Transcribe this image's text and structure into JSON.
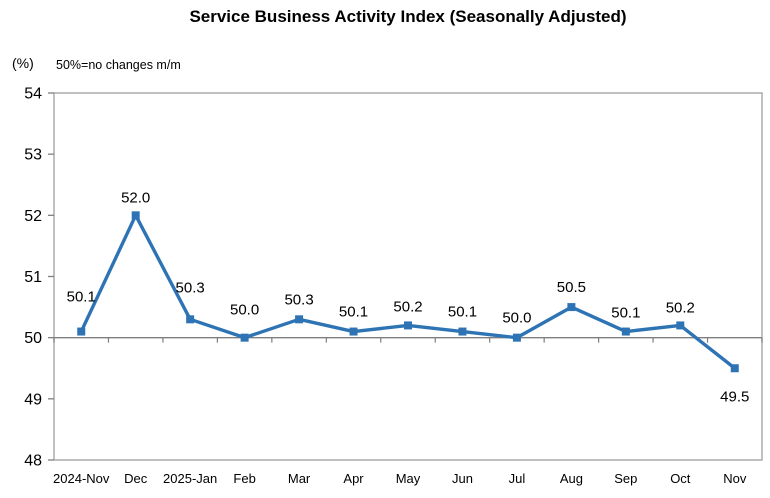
{
  "chart_data": {
    "type": "line",
    "title": "Service Business Activity Index (Seasonally Adjusted)",
    "unit_label": "(%)",
    "note": "50%=no changes m/m",
    "categories": [
      "2024-Nov",
      "Dec",
      "2025-Jan",
      "Feb",
      "Mar",
      "Apr",
      "May",
      "Jun",
      "Jul",
      "Aug",
      "Sep",
      "Oct",
      "Nov"
    ],
    "values": [
      50.1,
      52.0,
      50.3,
      50.0,
      50.3,
      50.1,
      50.2,
      50.1,
      50.0,
      50.5,
      50.1,
      50.2,
      49.5
    ],
    "xlabel": "",
    "ylabel": "(%)",
    "ylim": [
      48,
      54
    ],
    "y_ticks": [
      48,
      49,
      50,
      51,
      52,
      53,
      54
    ],
    "reference_line": 50,
    "grid": false,
    "legend": false,
    "data_labels": true,
    "marker": "square",
    "colors": {
      "line": "#2E74B5",
      "axis": "#7F7F7F",
      "border": "#A6A6A6",
      "text": "#000000"
    },
    "layout": {
      "label_dy": [
        -30,
        -13,
        -27,
        -23,
        -15,
        -15,
        -14,
        -15,
        -15,
        -15,
        -14,
        -13,
        33
      ]
    }
  }
}
